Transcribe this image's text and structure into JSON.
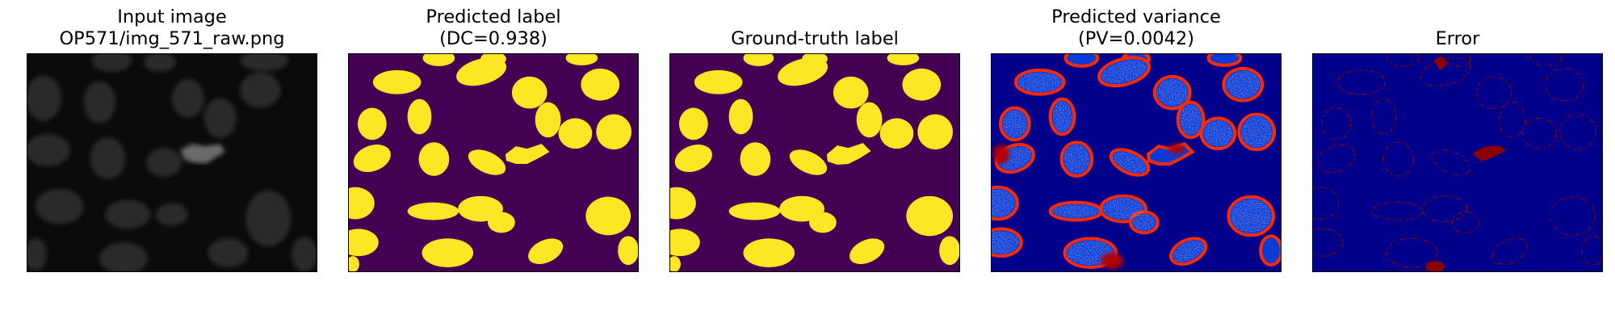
{
  "figure": {
    "panels": [
      {
        "id": "input",
        "title_lines": [
          "Input image",
          "OP571/img_571_raw.png"
        ],
        "background_color": "#0b0b0b",
        "colormap": "gray"
      },
      {
        "id": "predicted-label",
        "title_lines": [
          "Predicted label",
          "(DC=0.938)"
        ],
        "background_color": "#440154",
        "foreground_color": "#fde725",
        "colormap": "viridis"
      },
      {
        "id": "ground-truth",
        "title_lines": [
          "Ground-truth label"
        ],
        "background_color": "#440154",
        "foreground_color": "#fde725",
        "colormap": "viridis"
      },
      {
        "id": "predicted-variance",
        "title_lines": [
          "Predicted variance",
          "(PV=0.0042)"
        ],
        "background_color": "#00008b",
        "colormap": "jet"
      },
      {
        "id": "error",
        "title_lines": [
          "Error"
        ],
        "background_color": "#00008b",
        "foreground_color": "#8b0000",
        "colormap": "jet"
      }
    ]
  }
}
